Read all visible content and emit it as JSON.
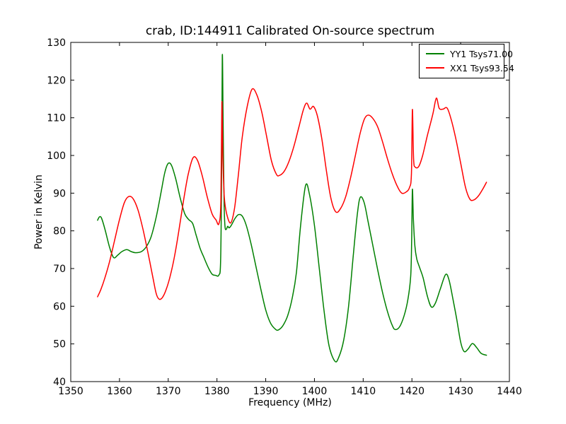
{
  "chart_data": {
    "type": "line",
    "title": "crab, ID:144911 Calibrated On-source spectrum",
    "xlabel": "Frequency (MHz)",
    "ylabel": "Power in Kelvin",
    "xlim": [
      1350,
      1440
    ],
    "ylim": [
      40,
      130
    ],
    "x_ticks": [
      1350,
      1360,
      1370,
      1380,
      1390,
      1400,
      1410,
      1420,
      1430,
      1440
    ],
    "y_ticks": [
      40,
      50,
      60,
      70,
      80,
      90,
      100,
      110,
      120,
      130
    ],
    "grid": false,
    "legend_position": "upper right",
    "axis_color": "#000000",
    "background": "#ffffff",
    "series": [
      {
        "name": "YY1 Tsys71.00",
        "color": "#008000",
        "points": [
          [
            1355.5,
            82.8
          ],
          [
            1355.9,
            83.7
          ],
          [
            1356.3,
            83.4
          ],
          [
            1357,
            80.5
          ],
          [
            1358,
            75.5
          ],
          [
            1358.8,
            72.9
          ],
          [
            1359.6,
            73.5
          ],
          [
            1360.5,
            74.5
          ],
          [
            1361.5,
            75.0
          ],
          [
            1362.4,
            74.5
          ],
          [
            1363.3,
            74.2
          ],
          [
            1364.5,
            74.5
          ],
          [
            1365.5,
            75.8
          ],
          [
            1366.5,
            78.5
          ],
          [
            1367.5,
            83.5
          ],
          [
            1368.5,
            90.0
          ],
          [
            1369.3,
            95.5
          ],
          [
            1370,
            97.9
          ],
          [
            1370.7,
            97.3
          ],
          [
            1371.5,
            94.0
          ],
          [
            1372.5,
            88.5
          ],
          [
            1373.4,
            84.5
          ],
          [
            1374.2,
            83.0
          ],
          [
            1375,
            82.0
          ],
          [
            1375.7,
            79.0
          ],
          [
            1376.5,
            75.5
          ],
          [
            1377.3,
            73.0
          ],
          [
            1378.2,
            70.3
          ],
          [
            1379,
            68.5
          ],
          [
            1379.7,
            68.2
          ],
          [
            1380.4,
            68.3
          ],
          [
            1380.75,
            72.0
          ],
          [
            1380.95,
            95.0
          ],
          [
            1381.1,
            126.5
          ],
          [
            1381.25,
            110.0
          ],
          [
            1381.45,
            88.0
          ],
          [
            1381.65,
            81.2
          ],
          [
            1381.9,
            80.4
          ],
          [
            1382.2,
            81.2
          ],
          [
            1382.5,
            80.8
          ],
          [
            1383,
            81.6
          ],
          [
            1383.7,
            83.3
          ],
          [
            1384.4,
            84.3
          ],
          [
            1385.2,
            83.9
          ],
          [
            1386,
            81.5
          ],
          [
            1387,
            76.5
          ],
          [
            1388,
            70.5
          ],
          [
            1389,
            64.5
          ],
          [
            1390,
            59.0
          ],
          [
            1391,
            55.5
          ],
          [
            1392,
            53.9
          ],
          [
            1392.6,
            53.7
          ],
          [
            1393.5,
            54.8
          ],
          [
            1394.5,
            57.5
          ],
          [
            1395.5,
            62.5
          ],
          [
            1396.3,
            69.0
          ],
          [
            1397.2,
            82.0
          ],
          [
            1398.2,
            92.1
          ],
          [
            1399,
            89.5
          ],
          [
            1400,
            81.5
          ],
          [
            1401,
            70.0
          ],
          [
            1402,
            58.5
          ],
          [
            1403,
            49.5
          ],
          [
            1404.2,
            45.4
          ],
          [
            1405,
            46.5
          ],
          [
            1406,
            51.0
          ],
          [
            1407,
            60.0
          ],
          [
            1408,
            74.0
          ],
          [
            1408.8,
            84.5
          ],
          [
            1409.4,
            88.9
          ],
          [
            1410.2,
            87.5
          ],
          [
            1411,
            82.5
          ],
          [
            1412,
            76.0
          ],
          [
            1413,
            69.5
          ],
          [
            1414,
            63.5
          ],
          [
            1415,
            58.5
          ],
          [
            1416,
            54.8
          ],
          [
            1416.6,
            53.8
          ],
          [
            1417.5,
            54.6
          ],
          [
            1418.4,
            57.5
          ],
          [
            1419.2,
            62.0
          ],
          [
            1419.75,
            68.0
          ],
          [
            1419.95,
            78.0
          ],
          [
            1420.1,
            91.0
          ],
          [
            1420.3,
            83.0
          ],
          [
            1420.6,
            76.0
          ],
          [
            1421,
            72.5
          ],
          [
            1421.6,
            70.2
          ],
          [
            1422.3,
            67.5
          ],
          [
            1423.2,
            62.5
          ],
          [
            1424,
            59.8
          ],
          [
            1424.8,
            60.8
          ],
          [
            1425.8,
            64.5
          ],
          [
            1426.9,
            68.4
          ],
          [
            1427.6,
            67.0
          ],
          [
            1428.4,
            62.0
          ],
          [
            1429.2,
            56.5
          ],
          [
            1430,
            50.5
          ],
          [
            1430.7,
            48.0
          ],
          [
            1431.5,
            48.6
          ],
          [
            1432.4,
            50.1
          ],
          [
            1433.3,
            49.0
          ],
          [
            1434.2,
            47.5
          ],
          [
            1435.3,
            47.0
          ]
        ]
      },
      {
        "name": "XX1 Tsys93.54",
        "color": "#ff0000",
        "points": [
          [
            1355.5,
            62.5
          ],
          [
            1356.2,
            64.5
          ],
          [
            1357,
            67.5
          ],
          [
            1358,
            72.0
          ],
          [
            1359,
            77.5
          ],
          [
            1360,
            83.0
          ],
          [
            1361,
            87.5
          ],
          [
            1361.9,
            89.1
          ],
          [
            1362.8,
            88.5
          ],
          [
            1363.8,
            85.5
          ],
          [
            1364.8,
            80.5
          ],
          [
            1365.8,
            74.5
          ],
          [
            1366.8,
            68.0
          ],
          [
            1367.5,
            63.5
          ],
          [
            1368.1,
            61.9
          ],
          [
            1368.8,
            62.3
          ],
          [
            1369.6,
            64.5
          ],
          [
            1370.5,
            68.5
          ],
          [
            1371.4,
            74.0
          ],
          [
            1372.3,
            81.0
          ],
          [
            1373.2,
            88.5
          ],
          [
            1374.1,
            95.0
          ],
          [
            1375.1,
            99.4
          ],
          [
            1376,
            98.7
          ],
          [
            1377,
            94.5
          ],
          [
            1378,
            89.0
          ],
          [
            1379,
            84.5
          ],
          [
            1379.8,
            82.9
          ],
          [
            1380.4,
            81.9
          ],
          [
            1380.8,
            88.0
          ],
          [
            1381.0,
            114.1
          ],
          [
            1381.2,
            100.0
          ],
          [
            1381.5,
            89.0
          ],
          [
            1382,
            84.5
          ],
          [
            1382.8,
            82.1
          ],
          [
            1383.6,
            86.0
          ],
          [
            1384.4,
            95.0
          ],
          [
            1385.2,
            105.0
          ],
          [
            1386.2,
            113.0
          ],
          [
            1387.2,
            117.6
          ],
          [
            1388.2,
            116.0
          ],
          [
            1389.2,
            111.5
          ],
          [
            1390.2,
            105.0
          ],
          [
            1391.2,
            98.5
          ],
          [
            1392.2,
            95.0
          ],
          [
            1392.8,
            94.7
          ],
          [
            1393.8,
            95.8
          ],
          [
            1394.8,
            98.5
          ],
          [
            1395.8,
            102.5
          ],
          [
            1396.8,
            107.5
          ],
          [
            1397.7,
            112.0
          ],
          [
            1398.4,
            113.9
          ],
          [
            1399.1,
            112.3
          ],
          [
            1399.8,
            113.0
          ],
          [
            1400.6,
            110.5
          ],
          [
            1401.5,
            104.5
          ],
          [
            1402.5,
            95.5
          ],
          [
            1403.4,
            88.5
          ],
          [
            1404.4,
            85.0
          ],
          [
            1405.4,
            86.0
          ],
          [
            1406.4,
            89.0
          ],
          [
            1407.4,
            94.0
          ],
          [
            1408.4,
            100.0
          ],
          [
            1409.4,
            106.0
          ],
          [
            1410.3,
            109.8
          ],
          [
            1411.1,
            110.7
          ],
          [
            1412,
            109.8
          ],
          [
            1413,
            107.5
          ],
          [
            1414,
            103.5
          ],
          [
            1415,
            99.0
          ],
          [
            1416,
            95.0
          ],
          [
            1417,
            91.8
          ],
          [
            1417.9,
            90.0
          ],
          [
            1418.8,
            90.3
          ],
          [
            1419.5,
            91.5
          ],
          [
            1419.9,
            95.0
          ],
          [
            1420.1,
            112.2
          ],
          [
            1420.35,
            99.0
          ],
          [
            1420.7,
            96.9
          ],
          [
            1421.4,
            97.1
          ],
          [
            1422.2,
            100.0
          ],
          [
            1423.2,
            105.5
          ],
          [
            1424.3,
            111.0
          ],
          [
            1425.0,
            115.2
          ],
          [
            1425.6,
            112.5
          ],
          [
            1426.4,
            112.3
          ],
          [
            1427.2,
            112.6
          ],
          [
            1428,
            109.8
          ],
          [
            1429,
            104.5
          ],
          [
            1430,
            98.0
          ],
          [
            1431,
            91.5
          ],
          [
            1431.9,
            88.4
          ],
          [
            1432.7,
            88.2
          ],
          [
            1433.6,
            89.2
          ],
          [
            1434.5,
            91.0
          ],
          [
            1435.3,
            92.9
          ]
        ]
      }
    ]
  }
}
